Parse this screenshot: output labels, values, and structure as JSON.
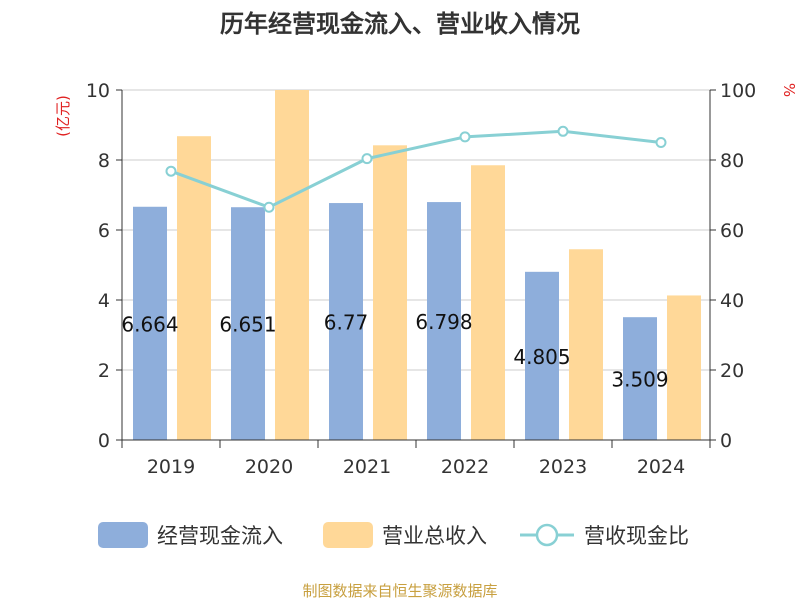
{
  "chart_data": {
    "type": "bar",
    "title": "历年经营现金流入、营业收入情况",
    "categories": [
      "2019",
      "2020",
      "2021",
      "2022",
      "2023",
      "2024"
    ],
    "y_left": {
      "unit": "(亿元)",
      "range": [
        0,
        10
      ],
      "ticks": [
        "0",
        "2",
        "4",
        "6",
        "8",
        "10"
      ]
    },
    "y_right": {
      "unit": "%",
      "range": [
        0,
        100
      ],
      "ticks": [
        "0",
        "20",
        "40",
        "60",
        "80",
        "100"
      ]
    },
    "series": [
      {
        "name": "经营现金流入",
        "axis": "left",
        "color": "#8eaedb",
        "values": [
          6.664,
          6.651,
          6.77,
          6.798,
          4.805,
          3.509
        ],
        "data_labels": [
          "6.664",
          "6.651",
          "6.77",
          "6.798",
          "4.805",
          "3.509"
        ]
      },
      {
        "name": "营业总收入",
        "axis": "left",
        "color": "#ffd898",
        "values": [
          8.68,
          10.0,
          8.42,
          7.85,
          5.45,
          4.13
        ]
      },
      {
        "name": "营收现金比",
        "axis": "right",
        "type": "line",
        "color": "#88d0d4",
        "values": [
          76.8,
          66.5,
          80.4,
          86.6,
          88.2,
          85.0
        ]
      }
    ],
    "grid": true,
    "legend_position": "bottom"
  },
  "footer": {
    "source": "制图数据来自恒生聚源数据库"
  }
}
